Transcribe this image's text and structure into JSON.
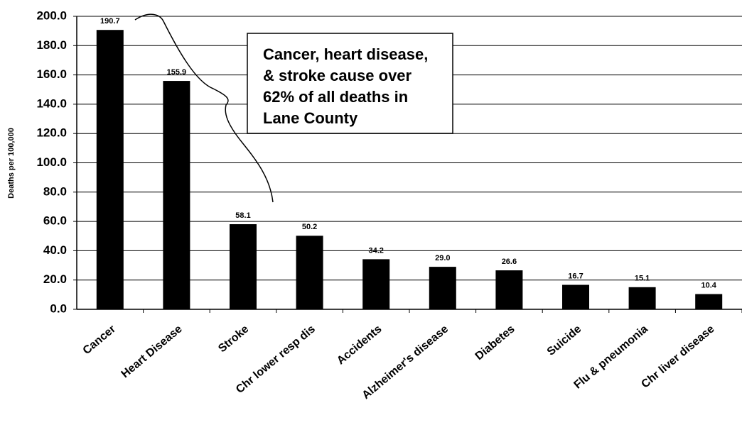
{
  "chart_data": {
    "type": "bar",
    "y_label": "Deaths per 100,000",
    "annotation": [
      "Cancer, heart disease,",
      "& stroke cause over",
      "62% of all deaths in",
      "Lane County"
    ],
    "categories": [
      "Cancer",
      "Heart Disease",
      "Stroke",
      "Chr lower resp dis",
      "Accidents",
      "Alzheimer's disease",
      "Diabetes",
      "Suicide",
      "Flu & pneumonia",
      "Chr liver disease"
    ],
    "values": [
      190.7,
      155.9,
      58.1,
      50.2,
      34.2,
      29.0,
      26.6,
      16.7,
      15.1,
      10.4
    ],
    "value_labels": [
      "190.7",
      "155.9",
      "58.1",
      "50.2",
      "34.2",
      "29.0",
      "26.6",
      "16.7",
      "15.1",
      "10.4"
    ],
    "color": "#000000",
    "ylim": [
      0,
      200
    ],
    "yticks": [
      {
        "value": 0,
        "label": "0.0"
      },
      {
        "value": 20,
        "label": "20.0"
      },
      {
        "value": 40,
        "label": "40.0"
      },
      {
        "value": 60,
        "label": "60.0"
      },
      {
        "value": 80,
        "label": "80.0"
      },
      {
        "value": 100,
        "label": "100.0"
      },
      {
        "value": 120,
        "label": "120.0"
      },
      {
        "value": 140,
        "label": "140.0"
      },
      {
        "value": 160,
        "label": "160.0"
      },
      {
        "value": 180,
        "label": "180.0"
      },
      {
        "value": 200,
        "label": "200.0"
      }
    ],
    "grid": true
  }
}
